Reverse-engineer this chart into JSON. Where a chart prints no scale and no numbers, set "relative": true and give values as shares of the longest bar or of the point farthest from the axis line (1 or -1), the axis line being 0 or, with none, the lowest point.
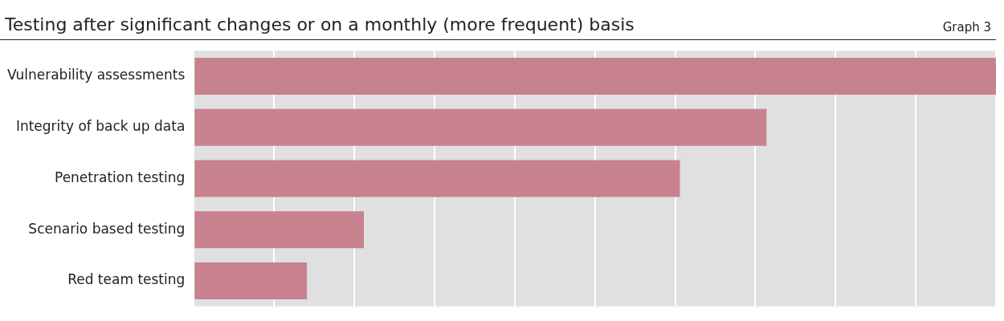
{
  "chart_data": {
    "type": "bar",
    "orientation": "horizontal",
    "relative": true,
    "title": "Testing after significant changes or on a monthly (more frequent) basis",
    "annotations": [
      "Graph 3"
    ],
    "categories": [
      "Vulnerability assessments",
      "Integrity of back up data",
      "Penetration testing",
      "Scenario based testing",
      "Red team testing"
    ],
    "values": [
      1,
      0.714,
      0.606,
      0.212,
      0.141
    ],
    "color": "#c8828f",
    "grid": "x",
    "legend": false
  }
}
